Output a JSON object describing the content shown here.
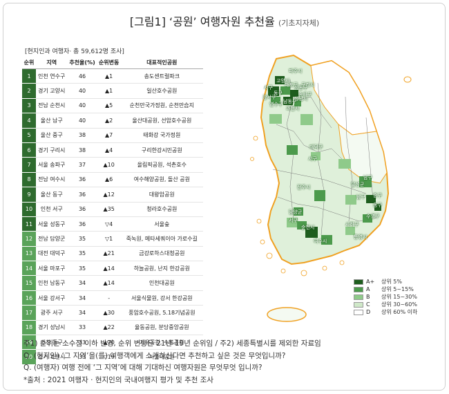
{
  "title": {
    "main": "[그림1] ‘공원’ 여행자원 추천율",
    "sub": "(기초지자체)"
  },
  "survey_note": "[현지인과 여행자· 총 59,612명 조사]",
  "table": {
    "headers": [
      "순위",
      "지역",
      "추천율(%)",
      "순위변동",
      "대표적인공원"
    ],
    "rows": [
      [
        "1",
        "인천 연수구",
        "46",
        "▲1",
        "송도센트럴파크"
      ],
      [
        "2",
        "경기 고양시",
        "40",
        "▲1",
        "일산호수공원"
      ],
      [
        "3",
        "전남 순천시",
        "40",
        "▲5",
        "순천만국가정원, 순천만습지"
      ],
      [
        "4",
        "울산 남구",
        "40",
        "▲2",
        "울산대공원, 선암호수공원"
      ],
      [
        "5",
        "울산 중구",
        "38",
        "▲7",
        "태화강 국가정원"
      ],
      [
        "6",
        "경기 구리시",
        "38",
        "▲4",
        "구리한강시민공원"
      ],
      [
        "7",
        "서울 송파구",
        "37",
        "▲10",
        "올림픽공원, 석촌호수"
      ],
      [
        "8",
        "전남 여수시",
        "36",
        "▲6",
        "여수해양공원, 돌산 공원"
      ],
      [
        "9",
        "울산 동구",
        "36",
        "▲12",
        "대왕암공원"
      ],
      [
        "10",
        "인천 서구",
        "36",
        "▲35",
        "청라호수공원"
      ],
      [
        "11",
        "서울 성동구",
        "36",
        "▽4",
        "서울숲"
      ],
      [
        "12",
        "전남 담양군",
        "35",
        "▽1",
        "죽녹원, 메타세쿼이아 가로수길"
      ],
      [
        "13",
        "대전 대덕구",
        "35",
        "▲21",
        "금강로하스대청공원"
      ],
      [
        "14",
        "서울 마포구",
        "35",
        "▲14",
        "하늘공원, 난지 한강공원"
      ],
      [
        "15",
        "인천 남동구",
        "34",
        "▲14",
        "인천대공원"
      ],
      [
        "16",
        "서울 강서구",
        "34",
        "-",
        "서울식물원, 강서 한강공원"
      ],
      [
        "17",
        "광주 서구",
        "34",
        "▲30",
        "풍암호수공원, 5.18기념공원"
      ],
      [
        "18",
        "경기 성남시",
        "33",
        "▲22",
        "율동공원, 분당중앙공원"
      ],
      [
        "19",
        "인천 동구",
        "33",
        "▲70",
        "자유공원, 수봉공원"
      ],
      [
        "20",
        "경기 과천시",
        "33",
        "▽19",
        "서울대공원"
      ]
    ]
  },
  "map": {
    "labels": [
      "파주시",
      "고양시",
      "서구",
      "동구",
      "마포구",
      "성동구",
      "강서구",
      "송파구",
      "남동구",
      "성남시",
      "연수구",
      "과천시",
      "구리시",
      "대덕구",
      "서구",
      "전주시",
      "달성군",
      "남구",
      "중구",
      "동구",
      "남구",
      "담양군",
      "서구",
      "순천시",
      "여수시",
      "통영시",
      "사하구",
      "수영구"
    ]
  },
  "legend": {
    "items": [
      {
        "grade": "A+",
        "desc": "상위 5%",
        "color": "#1e5d1e"
      },
      {
        "grade": "A",
        "desc": "상위 5~15%",
        "color": "#4c9a4c"
      },
      {
        "grade": "B",
        "desc": "상위 15~30%",
        "color": "#8fca8a"
      },
      {
        "grade": "C",
        "desc": "상위 30~60%",
        "color": "#cfe8c8"
      },
      {
        "grade": "D",
        "desc": "상위 60% 이하",
        "color": "#ffffff"
      }
    ]
  },
  "footnotes": [
    "주1) 순위는 소수점 이하 반영, 순위 변동은 21년-19년 순위임  /  주2) 세종특별시를 제외한 자료임",
    "Q. (현지인) ‘그 지역’을(를) 여행객에게 소개하신다면 추천하고 싶은 것은 무엇입니까?",
    "Q. (여행자) 여행 전에 ‘그 지역’에 대해 기대하신 여행자원은 무엇무엇 입니까?",
    "*출처 : 2021 여행자 · 현지인의 국내여행지 평가 및 추천 조사"
  ],
  "colors": {
    "rank_dark": "#2e6b2e",
    "rank_mid": "#5aa35a",
    "border_outline": "#f0a020"
  }
}
